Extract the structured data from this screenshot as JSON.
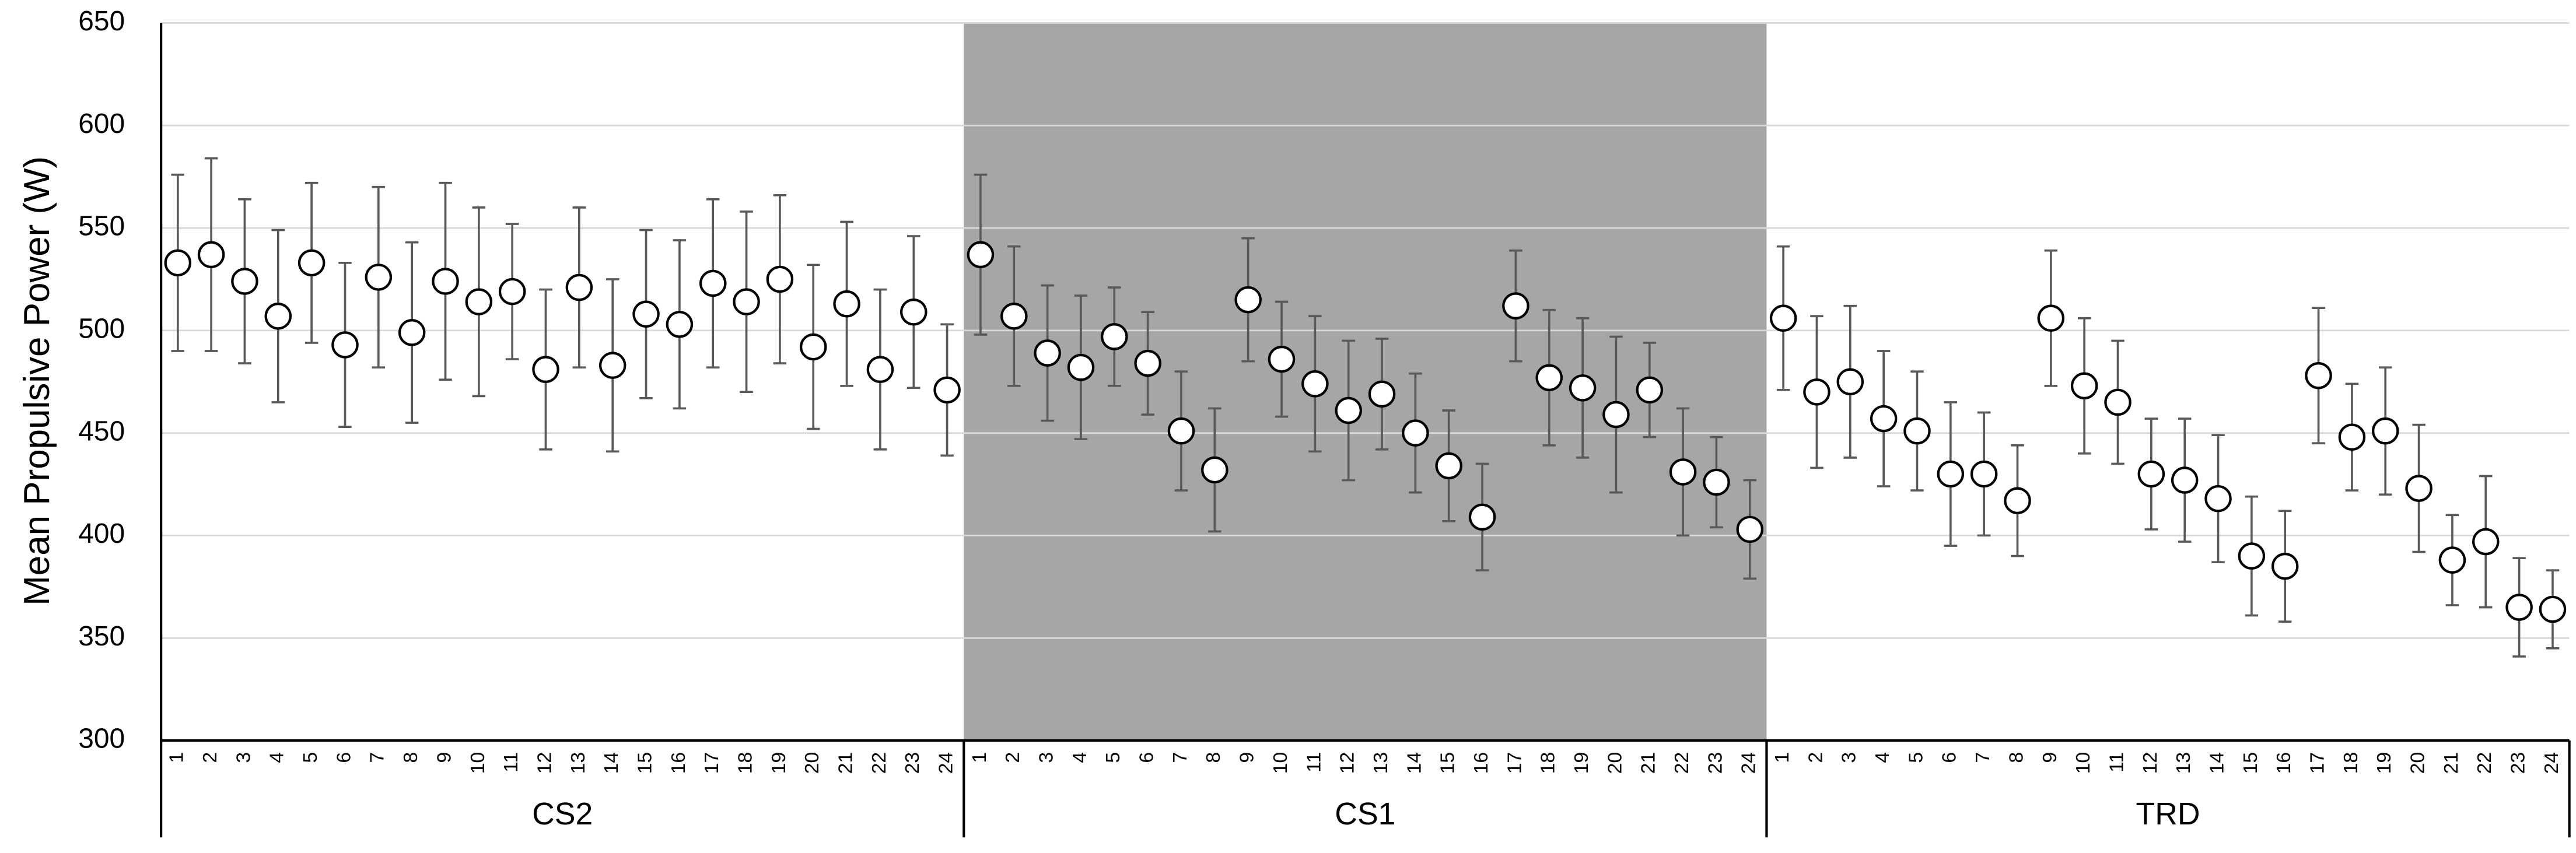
{
  "chart_data": {
    "type": "errorbar",
    "y_label": "Mean Propulsive Power (W)",
    "ylim": [
      300,
      650
    ],
    "yticks": [
      300,
      350,
      400,
      450,
      500,
      550,
      600,
      650
    ],
    "grid": true,
    "marker_color": "#ffffff",
    "error_color": "#595959",
    "groups": [
      {
        "name": "CS2",
        "background": null,
        "categories": [
          "1",
          "2",
          "3",
          "4",
          "5",
          "6",
          "7",
          "8",
          "9",
          "10",
          "11",
          "12",
          "13",
          "14",
          "15",
          "16",
          "17",
          "18",
          "19",
          "20",
          "21",
          "22",
          "23",
          "24"
        ],
        "values": [
          533,
          537,
          524,
          507,
          533,
          493,
          526,
          499,
          524,
          514,
          519,
          481,
          521,
          483,
          508,
          503,
          523,
          514,
          525,
          492,
          513,
          481,
          509,
          471
        ],
        "errors": [
          43,
          47,
          40,
          42,
          39,
          40,
          44,
          44,
          48,
          46,
          33,
          39,
          39,
          42,
          41,
          41,
          41,
          44,
          41,
          40,
          40,
          39,
          37,
          32
        ]
      },
      {
        "name": "CS1",
        "background": "#a6a6a6",
        "categories": [
          "1",
          "2",
          "3",
          "4",
          "5",
          "6",
          "7",
          "8",
          "9",
          "10",
          "11",
          "12",
          "13",
          "14",
          "15",
          "16",
          "17",
          "18",
          "19",
          "20",
          "21",
          "22",
          "23",
          "24"
        ],
        "values": [
          537,
          507,
          489,
          482,
          497,
          484,
          451,
          432,
          515,
          486,
          474,
          461,
          469,
          450,
          434,
          409,
          512,
          477,
          472,
          459,
          471,
          431,
          426,
          403
        ],
        "errors": [
          39,
          34,
          33,
          35,
          24,
          25,
          29,
          30,
          30,
          28,
          33,
          34,
          27,
          29,
          27,
          26,
          27,
          33,
          34,
          38,
          23,
          31,
          22,
          24
        ]
      },
      {
        "name": "TRD",
        "background": null,
        "categories": [
          "1",
          "2",
          "3",
          "4",
          "5",
          "6",
          "7",
          "8",
          "9",
          "10",
          "11",
          "12",
          "13",
          "14",
          "15",
          "16",
          "17",
          "18",
          "19",
          "20",
          "21",
          "22",
          "23",
          "24"
        ],
        "values": [
          506,
          470,
          475,
          457,
          451,
          430,
          430,
          417,
          506,
          473,
          465,
          430,
          427,
          418,
          390,
          385,
          478,
          448,
          451,
          423,
          388,
          397,
          365,
          364
        ],
        "errors": [
          35,
          37,
          37,
          33,
          29,
          35,
          30,
          27,
          33,
          33,
          30,
          27,
          30,
          31,
          29,
          27,
          33,
          26,
          31,
          31,
          22,
          32,
          24,
          19
        ]
      }
    ]
  }
}
